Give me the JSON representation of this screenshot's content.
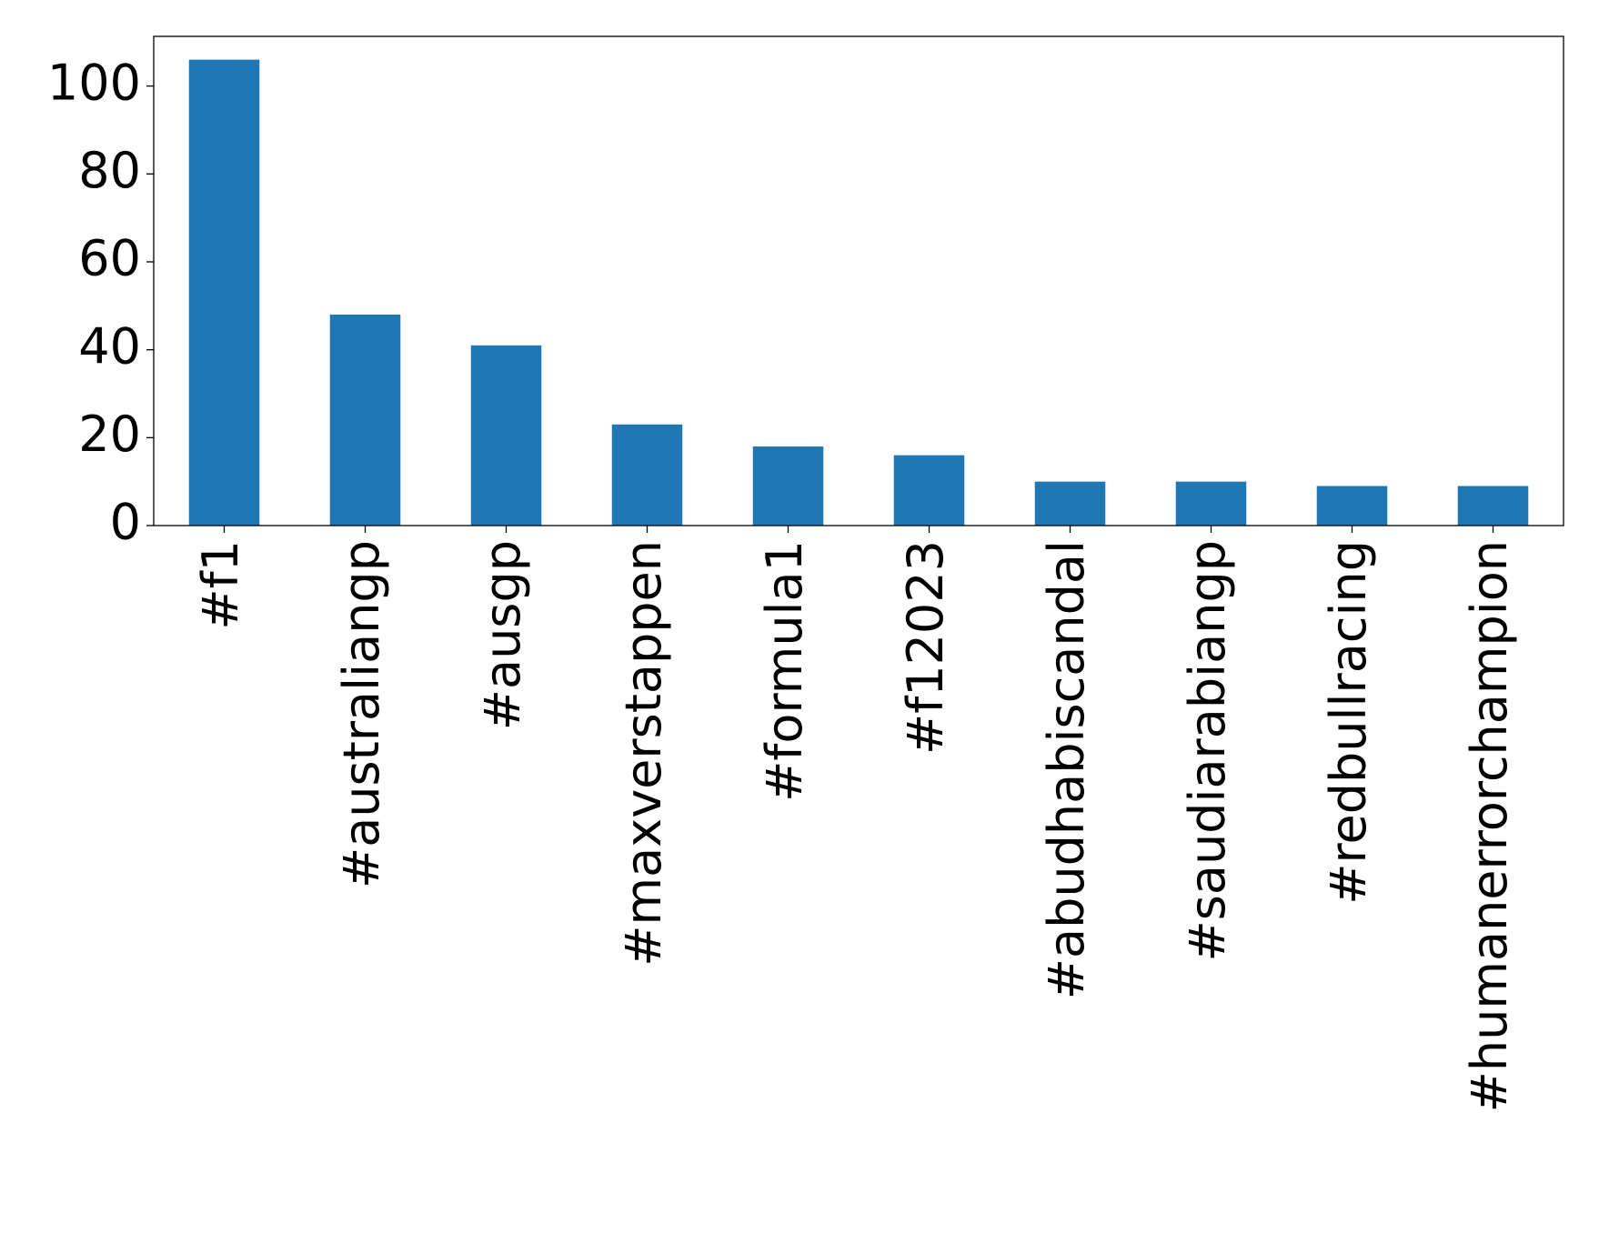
{
  "chart_data": {
    "type": "bar",
    "categories": [
      "#f1",
      "#australiangp",
      "#ausgp",
      "#maxverstappen",
      "#formula1",
      "#f12023",
      "#abudhabiscandal",
      "#saudiarabiangp",
      "#redbullracing",
      "#humanerrorchampion"
    ],
    "values": [
      106,
      48,
      41,
      23,
      18,
      16,
      10,
      10,
      9,
      9
    ],
    "color": "#1f77b4",
    "ylim": [
      0,
      111.3
    ],
    "yticks": [
      0,
      20,
      40,
      60,
      80,
      100
    ],
    "grid": false
  }
}
